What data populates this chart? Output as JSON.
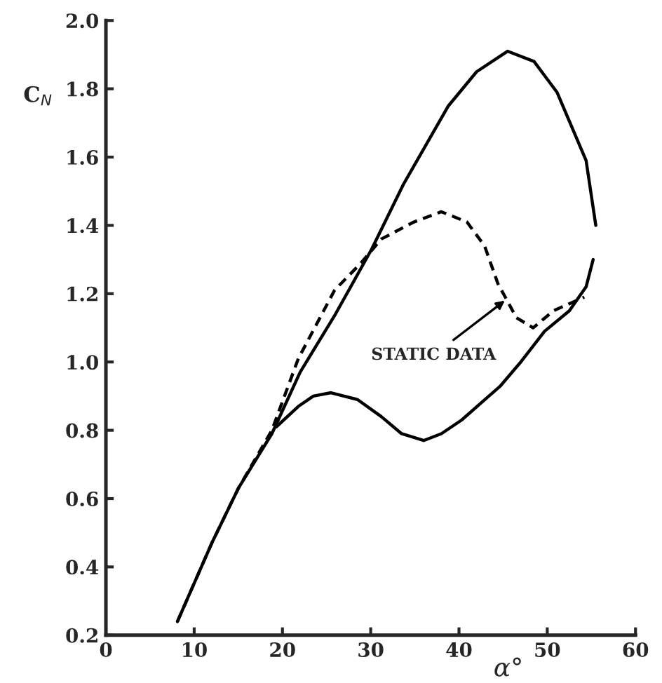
{
  "chart_data": {
    "type": "line",
    "xlabel": "α°",
    "ylabel": "C$_{N}$",
    "xlim": [
      0,
      60
    ],
    "ylim": [
      0.2,
      2.0
    ],
    "xticks": [
      0,
      10,
      20,
      30,
      40,
      50,
      60
    ],
    "yticks": [
      0.2,
      0.4,
      0.6,
      0.8,
      {
        "value": 1.0,
        "label": "1.0"
      },
      1.2,
      1.4,
      1.6,
      1.8,
      {
        "value": 2.0,
        "label": "2.0"
      }
    ],
    "grid": false,
    "legend": false,
    "marker": "none",
    "series": [
      {
        "color": "#000000",
        "line_style": "solid",
        "x": [
          8.1,
          12,
          15,
          18.8,
          22,
          26,
          30.1,
          33.7,
          38.8,
          42,
          45.5,
          48.5,
          51.1,
          54.4,
          55.5
        ],
        "values": [
          0.24,
          0.47,
          0.63,
          0.79,
          0.97,
          1.14,
          1.33,
          1.52,
          1.75,
          1.85,
          1.91,
          1.88,
          1.79,
          1.59,
          1.4
        ]
      },
      {
        "color": "#000000",
        "line_style": "solid",
        "x": [
          55.2,
          54.4,
          52.5,
          49.7,
          47,
          44.7,
          42.5,
          40.3,
          38,
          36,
          33.5,
          31.2,
          28.5,
          25.5,
          23.5,
          21.8,
          19.3
        ],
        "values": [
          1.3,
          1.22,
          1.15,
          1.09,
          1.0,
          0.93,
          0.88,
          0.83,
          0.79,
          0.77,
          0.79,
          0.84,
          0.89,
          0.91,
          0.9,
          0.87,
          0.81
        ]
      },
      {
        "color": "#000000",
        "line_style": "dashed",
        "x": [
          8.1,
          12,
          15,
          18.8,
          21.8,
          25.9,
          28.9,
          31.2,
          34.9,
          38,
          40.9,
          42.9,
          44.4,
          46.5,
          48.4,
          50.7,
          54.2
        ],
        "values": [
          0.24,
          0.47,
          0.63,
          0.8,
          1.01,
          1.21,
          1.29,
          1.36,
          1.41,
          1.44,
          1.41,
          1.34,
          1.23,
          1.13,
          1.1,
          1.15,
          1.19
        ]
      }
    ],
    "annotations": [
      {
        "text": "STATIC DATA",
        "x": 45.2,
        "y": 1.18
      }
    ]
  }
}
